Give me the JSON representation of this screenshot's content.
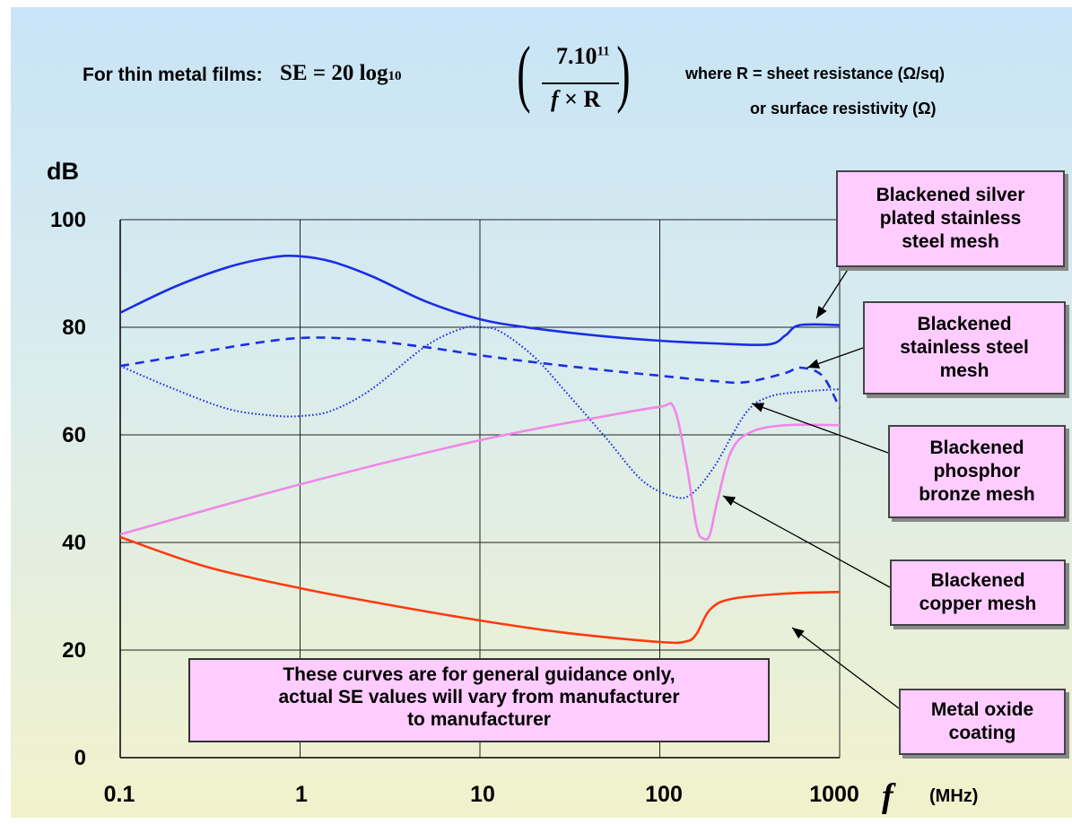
{
  "formula": {
    "lead": "For thin metal films:",
    "lhs": "SE = 20 log",
    "log_base": "10",
    "numerator": "7.10",
    "numerator_exp": "11",
    "denominator_f": "f",
    "denominator_rest": " × R",
    "where": "where R = sheet resistance (Ω/sq)",
    "or": "or surface resistivity (Ω)"
  },
  "note": {
    "line1": "These curves are for general guidance only,",
    "line2": "actual SE values will vary from manufacturer",
    "line3": "to manufacturer"
  },
  "labels": {
    "silver": [
      "Blackened silver",
      "plated stainless",
      "steel mesh"
    ],
    "stainless": [
      "Blackened",
      "stainless steel",
      "mesh"
    ],
    "phosphor": [
      "Blackened",
      "phosphor",
      "bronze mesh"
    ],
    "copper": [
      "Blackened",
      "copper mesh"
    ],
    "oxide": [
      "Metal oxide",
      "coating"
    ]
  },
  "chart_data": {
    "type": "line",
    "title": "",
    "ylabel": "dB",
    "xlabel_symbol": "f",
    "xlabel_unit": "(MHz)",
    "x_scale": "log",
    "xlim": [
      0.1,
      1000
    ],
    "ylim": [
      0,
      100
    ],
    "x_ticks": [
      "0.1",
      "1",
      "10",
      "100",
      "1000"
    ],
    "y_ticks": [
      "0",
      "20",
      "40",
      "60",
      "80",
      "100"
    ],
    "grid": true,
    "colors": {
      "silver": "#1a2ee6",
      "stainless": "#1a2ee6",
      "phosphor": "#1a2ee6",
      "copper": "#f088e8",
      "oxide": "#ff3a10"
    },
    "series": [
      {
        "key": "silver",
        "name": "Blackened silver plated stainless steel mesh",
        "style": "solid",
        "points": [
          [
            0.1,
            82.7
          ],
          [
            0.2,
            87.5
          ],
          [
            0.4,
            91.2
          ],
          [
            0.7,
            93
          ],
          [
            1,
            93.2
          ],
          [
            1.5,
            92.2
          ],
          [
            2.5,
            89.5
          ],
          [
            5,
            84.8
          ],
          [
            10,
            81.5
          ],
          [
            20,
            79.8
          ],
          [
            50,
            78.3
          ],
          [
            100,
            77.5
          ],
          [
            200,
            77
          ],
          [
            400,
            76.8
          ],
          [
            500,
            78.5
          ],
          [
            600,
            80.4
          ],
          [
            1000,
            80.4
          ]
        ]
      },
      {
        "key": "stainless",
        "name": "Blackened stainless steel mesh",
        "style": "dashed",
        "points": [
          [
            0.1,
            72.8
          ],
          [
            0.2,
            74.5
          ],
          [
            0.5,
            76.8
          ],
          [
            1,
            78
          ],
          [
            2,
            77.8
          ],
          [
            5,
            76.3
          ],
          [
            10,
            74.8
          ],
          [
            20,
            73.5
          ],
          [
            50,
            72
          ],
          [
            100,
            71
          ],
          [
            200,
            70
          ],
          [
            300,
            69.8
          ],
          [
            500,
            71.5
          ],
          [
            600,
            72.5
          ],
          [
            800,
            71
          ],
          [
            1000,
            65
          ]
        ]
      },
      {
        "key": "phosphor",
        "name": "Blackened phosphor bronze mesh",
        "style": "dotted",
        "points": [
          [
            0.1,
            72.8
          ],
          [
            0.2,
            68.5
          ],
          [
            0.4,
            64.8
          ],
          [
            0.7,
            63.6
          ],
          [
            1,
            63.5
          ],
          [
            1.5,
            64.5
          ],
          [
            2.5,
            68.5
          ],
          [
            5,
            76.5
          ],
          [
            8,
            79.8
          ],
          [
            10,
            80
          ],
          [
            13,
            79.2
          ],
          [
            20,
            74.5
          ],
          [
            30,
            68
          ],
          [
            50,
            59.5
          ],
          [
            80,
            51.5
          ],
          [
            120,
            48.5
          ],
          [
            150,
            49
          ],
          [
            200,
            54
          ],
          [
            300,
            64
          ],
          [
            400,
            67
          ],
          [
            600,
            68
          ],
          [
            1000,
            68.5
          ]
        ]
      },
      {
        "key": "copper",
        "name": "Blackened copper mesh",
        "style": "solid",
        "points": [
          [
            0.1,
            41.5
          ],
          [
            1,
            50.8
          ],
          [
            10,
            59
          ],
          [
            50,
            63.5
          ],
          [
            100,
            65.2
          ],
          [
            120,
            65
          ],
          [
            140,
            55
          ],
          [
            160,
            43
          ],
          [
            175,
            40.7
          ],
          [
            190,
            41.5
          ],
          [
            210,
            48
          ],
          [
            250,
            57
          ],
          [
            320,
            60.5
          ],
          [
            500,
            61.8
          ],
          [
            1000,
            61.8
          ]
        ]
      },
      {
        "key": "oxide",
        "name": "Metal oxide coating",
        "style": "solid",
        "points": [
          [
            0.1,
            41
          ],
          [
            0.3,
            35.5
          ],
          [
            1,
            31.5
          ],
          [
            3,
            28.5
          ],
          [
            10,
            25.5
          ],
          [
            30,
            23.2
          ],
          [
            100,
            21.5
          ],
          [
            140,
            21.6
          ],
          [
            160,
            23
          ],
          [
            190,
            27.5
          ],
          [
            250,
            29.5
          ],
          [
            500,
            30.5
          ],
          [
            1000,
            30.8
          ]
        ]
      }
    ]
  }
}
